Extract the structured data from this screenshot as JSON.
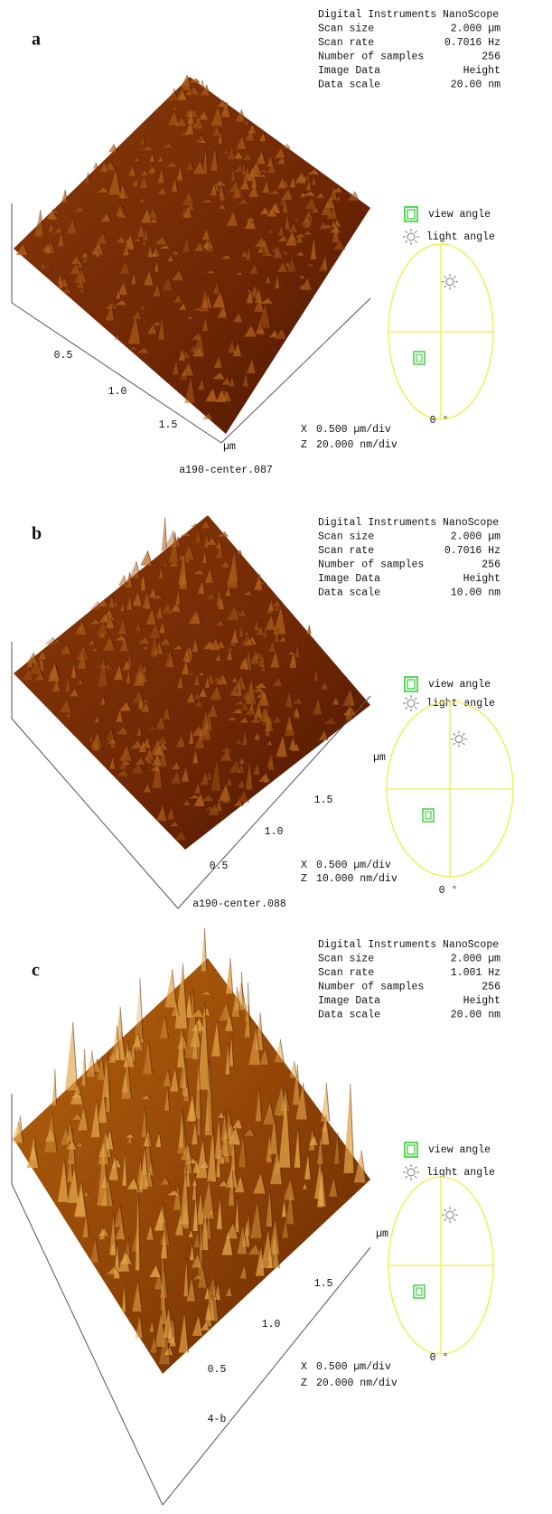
{
  "panels": [
    {
      "label": "a",
      "info": {
        "header": "Digital Instruments NanoScope",
        "rows": [
          [
            "Scan size",
            "2.000 µm"
          ],
          [
            "Scan rate",
            "0.7016 Hz"
          ],
          [
            "Number of samples",
            "256"
          ],
          [
            "Image Data",
            "Height"
          ],
          [
            "Data scale",
            "20.00 nm"
          ]
        ]
      },
      "axis_labels": [
        "0.5",
        "1.0",
        "1.5",
        "µm"
      ],
      "legend": {
        "view": "view angle",
        "light": "light angle",
        "angle": "0 °"
      },
      "scale": [
        [
          "X",
          "0.500 µm/div"
        ],
        [
          "Z",
          "20.000 nm/div"
        ]
      ],
      "file": "a190-center.087"
    },
    {
      "label": "b",
      "info": {
        "header": "Digital Instruments NanoScope",
        "rows": [
          [
            "Scan size",
            "2.000 µm"
          ],
          [
            "Scan rate",
            "0.7016 Hz"
          ],
          [
            "Number of samples",
            "256"
          ],
          [
            "Image Data",
            "Height"
          ],
          [
            "Data scale",
            "10.00 nm"
          ]
        ]
      },
      "axis_labels": [
        "µm",
        "1.5",
        "1.0",
        "0.5"
      ],
      "legend": {
        "view": "view angle",
        "light": "light angle",
        "angle": "0 °"
      },
      "scale": [
        [
          "X",
          "0.500 µm/div"
        ],
        [
          "Z",
          "10.000 nm/div"
        ]
      ],
      "file": "a190-center.088"
    },
    {
      "label": "c",
      "info": {
        "header": "Digital Instruments NanoScope",
        "rows": [
          [
            "Scan size",
            "2.000 µm"
          ],
          [
            "Scan rate",
            "1.001 Hz"
          ],
          [
            "Number of samples",
            "256"
          ],
          [
            "Image Data",
            "Height"
          ],
          [
            "Data scale",
            "20.00 nm"
          ]
        ]
      },
      "axis_labels": [
        "µm",
        "1.5",
        "1.0",
        "0.5"
      ],
      "legend": {
        "view": "view angle",
        "light": "light angle",
        "angle": "0 °"
      },
      "scale": [
        [
          "X",
          "0.500 µm/div"
        ],
        [
          "Z",
          "20.000 nm/div"
        ]
      ],
      "file": "4-b"
    }
  ]
}
